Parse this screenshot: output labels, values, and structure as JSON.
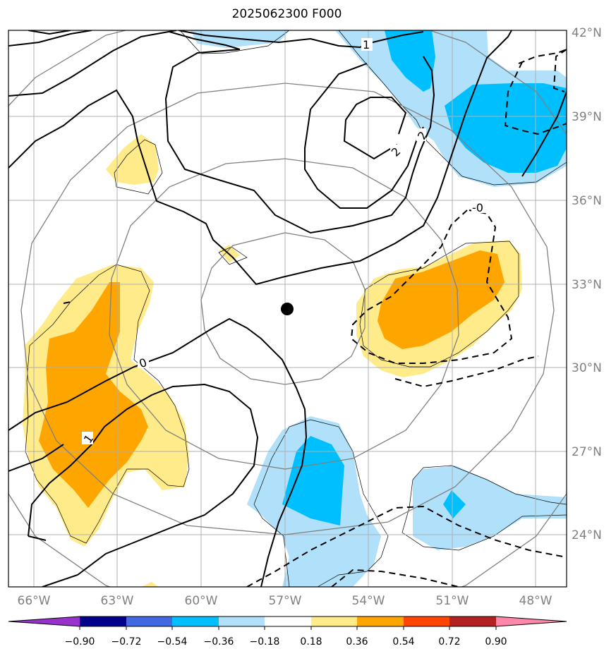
{
  "title": "2025062300 F000",
  "axes": {
    "lon_labels": [
      "66°W",
      "63°W",
      "60°W",
      "57°W",
      "54°W",
      "51°W",
      "48°W"
    ],
    "lat_labels": [
      "42°N",
      "39°N",
      "36°N",
      "33°N",
      "30°N",
      "27°N",
      "24°N"
    ]
  },
  "contour_labels": {
    "c1": "1",
    "c2a": "2",
    "c2b": "2",
    "c0a": "-0",
    "c0b": "0",
    "c1b": "1"
  },
  "colorbar": {
    "ticks": [
      "−0.90",
      "−0.72",
      "−0.54",
      "−0.36",
      "−0.18",
      "0.18",
      "0.36",
      "0.54",
      "0.72",
      "0.90"
    ],
    "colors": [
      "#9932cc",
      "#00008b",
      "#4169e1",
      "#00bfff",
      "#b0e0fa",
      "#ffffff",
      "#ffeb8a",
      "#ffa500",
      "#ff4500",
      "#b22222",
      "#ff88aa"
    ]
  },
  "colors": {
    "light_blue": "#b0e0fa",
    "blue": "#00bfff",
    "light_yellow": "#ffeb8a",
    "orange": "#ffa500",
    "range_rings": "#808080",
    "grid": "#b0b0b0"
  },
  "center_marker": "storm-center"
}
